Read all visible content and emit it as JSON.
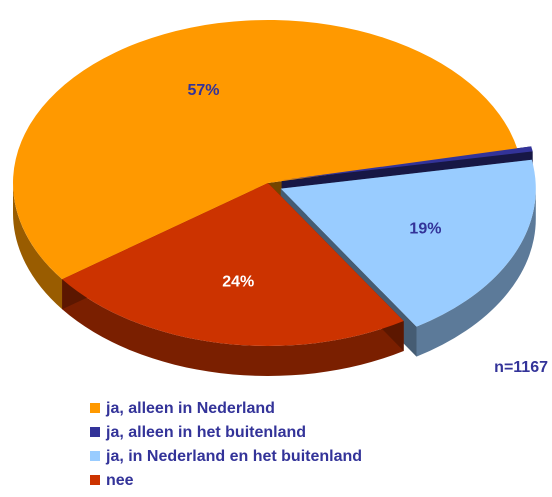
{
  "chart_data": {
    "type": "pie",
    "categories": [
      "ja, alleen in Nederland",
      "ja, alleen in het buitenland",
      "ja, in Nederland en het buitenland",
      "nee"
    ],
    "values": [
      57,
      0.5,
      19,
      24
    ],
    "value_labels": [
      "57%",
      null,
      "19%",
      "24%"
    ],
    "colors": [
      "#ff9900",
      "#333399",
      "#99ccff",
      "#cc3300"
    ],
    "annotation": "n=1167",
    "legend": "bottom-left"
  }
}
